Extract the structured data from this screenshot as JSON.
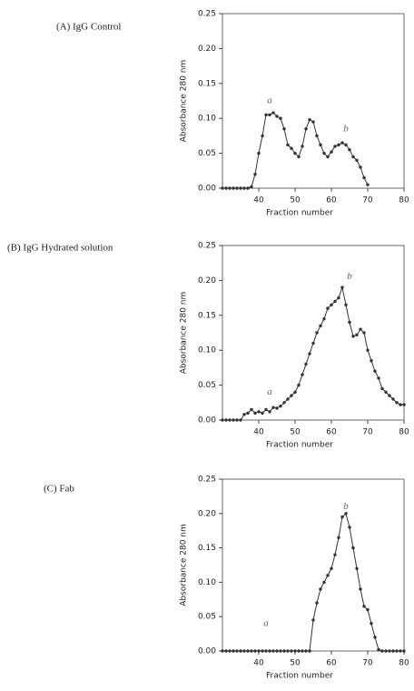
{
  "chart_data": [
    {
      "type": "line",
      "panel_label": "(A)  IgG Control",
      "xlabel": "Fraction number",
      "ylabel": "Absorbance 280 nm",
      "color": "#333333",
      "x": [
        30,
        31,
        32,
        33,
        34,
        35,
        36,
        37,
        38,
        39,
        40,
        41,
        42,
        43,
        44,
        45,
        46,
        47,
        48,
        49,
        50,
        51,
        52,
        53,
        54,
        55,
        56,
        57,
        58,
        59,
        60,
        61,
        62,
        63,
        64,
        65,
        66,
        67,
        68,
        69,
        70
      ],
      "values": [
        0,
        0,
        0,
        0,
        0,
        0,
        0,
        0,
        0.002,
        0.02,
        0.05,
        0.075,
        0.105,
        0.105,
        0.108,
        0.103,
        0.1,
        0.085,
        0.062,
        0.057,
        0.05,
        0.045,
        0.06,
        0.085,
        0.098,
        0.095,
        0.075,
        0.062,
        0.05,
        0.045,
        0.052,
        0.06,
        0.062,
        0.065,
        0.062,
        0.055,
        0.045,
        0.04,
        0.03,
        0.015,
        0.005
      ],
      "xlim": [
        30,
        80
      ],
      "xticks": [
        40,
        50,
        60,
        70,
        80
      ],
      "ylim": [
        0,
        0.25
      ],
      "yticks": [
        {
          "value": 0,
          "label": "0.00"
        },
        {
          "value": 0.05,
          "label": "0.05"
        },
        {
          "value": 0.1,
          "label": "0.10"
        },
        {
          "value": 0.15,
          "label": "0.15"
        },
        {
          "value": 0.2,
          "label": "0.20"
        },
        {
          "value": 0.25,
          "label": "0.25"
        }
      ],
      "annotations": [
        {
          "text": "a",
          "x": 43,
          "y": 0.125
        },
        {
          "text": "b",
          "x": 64,
          "y": 0.085
        }
      ]
    },
    {
      "type": "line",
      "panel_label": "(B)  IgG Hydrated solution",
      "xlabel": "Fraction number",
      "ylabel": "Absorbance 280 nm",
      "color": "#333333",
      "x": [
        30,
        31,
        32,
        33,
        34,
        35,
        36,
        37,
        38,
        39,
        40,
        41,
        42,
        43,
        44,
        45,
        46,
        47,
        48,
        49,
        50,
        51,
        52,
        53,
        54,
        55,
        56,
        57,
        58,
        59,
        60,
        61,
        62,
        63,
        64,
        65,
        66,
        67,
        68,
        69,
        70,
        71,
        72,
        73,
        74,
        75,
        76,
        77,
        78,
        79,
        80
      ],
      "values": [
        0,
        0,
        0,
        0,
        0,
        0,
        0.008,
        0.01,
        0.015,
        0.01,
        0.012,
        0.01,
        0.015,
        0.012,
        0.018,
        0.017,
        0.02,
        0.025,
        0.03,
        0.035,
        0.04,
        0.05,
        0.065,
        0.08,
        0.095,
        0.11,
        0.125,
        0.135,
        0.145,
        0.16,
        0.165,
        0.17,
        0.175,
        0.19,
        0.165,
        0.14,
        0.12,
        0.122,
        0.13,
        0.125,
        0.1,
        0.085,
        0.07,
        0.06,
        0.045,
        0.04,
        0.035,
        0.03,
        0.025,
        0.022,
        0.022
      ],
      "xlim": [
        30,
        80
      ],
      "xticks": [
        40,
        50,
        60,
        70,
        80
      ],
      "ylim": [
        0,
        0.25
      ],
      "yticks": [
        {
          "value": 0,
          "label": "0.00"
        },
        {
          "value": 0.05,
          "label": "0.05"
        },
        {
          "value": 0.1,
          "label": "0.10"
        },
        {
          "value": 0.15,
          "label": "0.15"
        },
        {
          "value": 0.2,
          "label": "0.20"
        },
        {
          "value": 0.25,
          "label": "0.25"
        }
      ],
      "annotations": [
        {
          "text": "a",
          "x": 43,
          "y": 0.04
        },
        {
          "text": "b",
          "x": 65,
          "y": 0.205
        }
      ]
    },
    {
      "type": "line",
      "panel_label": "(C)  Fab",
      "xlabel": "Fraction number",
      "ylabel": "Absorbance 280 nm",
      "color": "#333333",
      "x": [
        30,
        31,
        32,
        33,
        34,
        35,
        36,
        37,
        38,
        39,
        40,
        41,
        42,
        43,
        44,
        45,
        46,
        47,
        48,
        49,
        50,
        51,
        52,
        53,
        54,
        55,
        56,
        57,
        58,
        59,
        60,
        61,
        62,
        63,
        64,
        65,
        66,
        67,
        68,
        69,
        70,
        71,
        72,
        73,
        74,
        75,
        76,
        77,
        78,
        79,
        80
      ],
      "values": [
        0,
        0,
        0,
        0,
        0,
        0,
        0,
        0,
        0,
        0,
        0,
        0,
        0,
        0,
        0,
        0,
        0,
        0,
        0,
        0,
        0,
        0,
        0,
        0,
        0,
        0.045,
        0.07,
        0.09,
        0.1,
        0.11,
        0.12,
        0.14,
        0.165,
        0.195,
        0.2,
        0.18,
        0.15,
        0.12,
        0.09,
        0.065,
        0.06,
        0.04,
        0.02,
        0.002,
        0,
        0,
        0,
        0,
        0,
        0,
        0
      ],
      "xlim": [
        30,
        80
      ],
      "xticks": [
        40,
        50,
        60,
        70,
        80
      ],
      "ylim": [
        0,
        0.25
      ],
      "yticks": [
        {
          "value": 0,
          "label": "0.00"
        },
        {
          "value": 0.05,
          "label": "0.05"
        },
        {
          "value": 0.1,
          "label": "0.10"
        },
        {
          "value": 0.15,
          "label": "0.15"
        },
        {
          "value": 0.2,
          "label": "0.20"
        },
        {
          "value": 0.25,
          "label": "0.25"
        }
      ],
      "annotations": [
        {
          "text": "a",
          "x": 42,
          "y": 0.04
        },
        {
          "text": "b",
          "x": 64,
          "y": 0.21
        }
      ]
    }
  ]
}
